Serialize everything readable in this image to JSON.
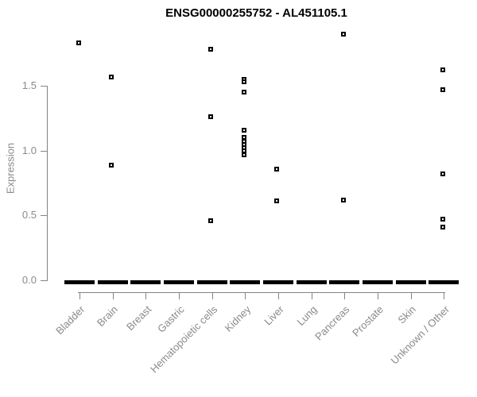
{
  "title": "ENSG00000255752 - AL451105.1",
  "axes": {
    "y_label": "Expression",
    "y_ticks": [
      "0.0",
      "0.5",
      "1.0",
      "1.5"
    ],
    "y_tick_values": [
      0.0,
      0.5,
      1.0,
      1.5
    ]
  },
  "colors": {
    "point": "#000000",
    "axis_line": "#848484",
    "axis_text": "#8a8a8a",
    "title_text": "#000000"
  },
  "chart_data": {
    "type": "scatter",
    "title": "ENSG00000255752 - AL451105.1",
    "xlabel": "",
    "ylabel": "Expression",
    "ylim": [
      0,
      1.95
    ],
    "grid": false,
    "legend": false,
    "marker": "small open black square",
    "categories": [
      "Bladder",
      "Brain",
      "Breast",
      "Gastric",
      "Hematopoietic cells",
      "Kidney",
      "Liver",
      "Lung",
      "Pancreas",
      "Prostate",
      "Skin",
      "Unknown / Other"
    ],
    "points_by_category": [
      [
        1.83
      ],
      [
        1.57,
        0.89
      ],
      [],
      [],
      [
        1.78,
        1.26,
        0.46
      ],
      [
        1.55,
        1.53,
        1.45,
        1.16,
        1.1,
        1.07,
        1.05,
        1.02,
        1.0,
        0.97
      ],
      [
        0.86,
        0.61
      ],
      [],
      [
        1.9,
        0.62
      ],
      [],
      [],
      [
        1.62,
        1.47,
        0.82,
        0.47,
        0.41
      ]
    ],
    "zero_cluster_note": "Every category has a dense mass of points at 0 rendered as a thick horizontal dash",
    "zero_cluster_all_categories": true
  }
}
